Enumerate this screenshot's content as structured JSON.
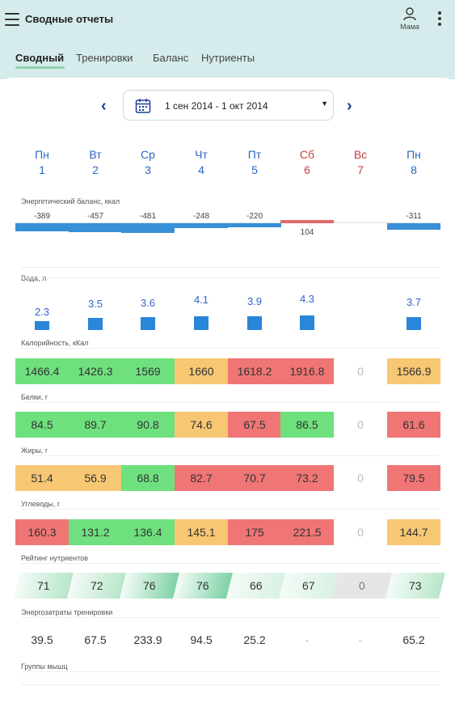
{
  "app": {
    "title": "Сводные отчеты",
    "user": "Мама"
  },
  "tabs": [
    "Сводный",
    "Тренировки",
    "Баланс",
    "Нутриенты"
  ],
  "date_range": "1 сен 2014 - 1 окт 2014",
  "days": [
    {
      "name": "Пн",
      "num": "1",
      "weekend": false
    },
    {
      "name": "Вт",
      "num": "2",
      "weekend": false
    },
    {
      "name": "Ср",
      "num": "3",
      "weekend": false
    },
    {
      "name": "Чт",
      "num": "4",
      "weekend": false
    },
    {
      "name": "Пт",
      "num": "5",
      "weekend": false
    },
    {
      "name": "Сб",
      "num": "6",
      "weekend": true
    },
    {
      "name": "Вс",
      "num": "7",
      "weekend": true
    },
    {
      "name": "Пн",
      "num": "8",
      "weekend": false
    }
  ],
  "sections": {
    "energy_balance": "Энергетический баланс, ккал",
    "water": "Вода, л",
    "calories": "Калорийность, кКал",
    "protein": "Белки, г",
    "fat": "Жиры, г",
    "carbs": "Углеводы, г",
    "rating": "Рейтинг нутриентов",
    "expenditure": "Энергозатраты тренировки",
    "muscles": "Группы мышц"
  },
  "energy_balance": [
    "-389",
    "-457",
    "-481",
    "-248",
    "-220",
    "104",
    "",
    "-311"
  ],
  "water": [
    "2.3",
    "3.5",
    "3.6",
    "4.1",
    "3.9",
    "4.3",
    "",
    "3.7"
  ],
  "calories": {
    "values": [
      "1466.4",
      "1426.3",
      "1569",
      "1660",
      "1618.2",
      "1916.8",
      "0",
      "1566.9"
    ],
    "status": [
      "green",
      "green",
      "green",
      "orange",
      "red",
      "red",
      "zero",
      "orange"
    ]
  },
  "protein": {
    "values": [
      "84.5",
      "89.7",
      "90.8",
      "74.6",
      "67.5",
      "86.5",
      "0",
      "61.6"
    ],
    "status": [
      "green",
      "green",
      "green",
      "orange",
      "red",
      "green",
      "zero",
      "red"
    ]
  },
  "fat": {
    "values": [
      "51.4",
      "56.9",
      "68.8",
      "82.7",
      "70.7",
      "73.2",
      "0",
      "79.5"
    ],
    "status": [
      "orange",
      "orange",
      "green",
      "red",
      "red",
      "red",
      "zero",
      "red"
    ]
  },
  "carbs": {
    "values": [
      "160.3",
      "131.2",
      "136.4",
      "145.1",
      "175",
      "221.5",
      "0",
      "144.7"
    ],
    "status": [
      "red",
      "green",
      "green",
      "orange",
      "red",
      "red",
      "zero",
      "orange"
    ]
  },
  "rating": [
    "71",
    "72",
    "76",
    "76",
    "66",
    "67",
    "0",
    "73"
  ],
  "expenditure": [
    "39.5",
    "67.5",
    "233.9",
    "94.5",
    "25.2",
    "-",
    "-",
    "65.2"
  ],
  "colors": {
    "accent": "#2b67c6",
    "weekend": "#cc3b3b",
    "green": "#6fe07e",
    "orange": "#f7c774",
    "red": "#f07575",
    "water": "#2a86d8",
    "header_bg": "#d6ecec"
  }
}
